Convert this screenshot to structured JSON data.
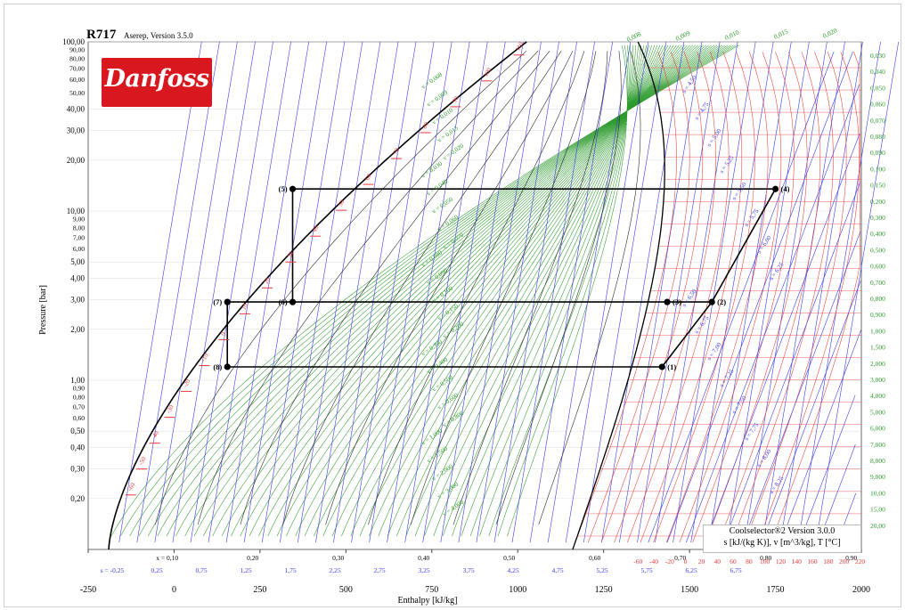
{
  "logo": {
    "brand": "Danfoss"
  },
  "chart_data": {
    "type": "pressure-enthalpy diagram",
    "title": "R717",
    "subtitle": "Aserep, Version 3.5.0",
    "xlabel": "Enthalpy [kJ/kg]",
    "ylabel": "Pressure [bar]",
    "xlim": [
      -250,
      2000
    ],
    "ylim": [
      0.1,
      100
    ],
    "yscale": "log",
    "x_ticks": [
      "-250",
      "0",
      "250",
      "500",
      "750",
      "1000",
      "1250",
      "1500",
      "1750",
      "2000"
    ],
    "y_ticks_major": [
      "100,00",
      "40,00",
      "30,00",
      "20,00",
      "10,00",
      "5,00",
      "4,00",
      "3,00",
      "2,00",
      "1,00",
      "0,50",
      "0,40",
      "0,30",
      "0,20"
    ],
    "y_ticks_dense": [
      "90,00",
      "80,00",
      "70,00",
      "60,00",
      "50,00",
      "9,00",
      "8,00",
      "7,00",
      "6,00",
      "0,90",
      "0,80",
      "0,70",
      "0,60"
    ],
    "quality_ticks": [
      "x = 0,10",
      "0,20",
      "0,30",
      "0,40",
      "0,50",
      "0,60",
      "0,70",
      "0,80",
      "0,90"
    ],
    "entropy_ticks": [
      "s = -0,25",
      "0,25",
      "0,75",
      "1,25",
      "1,75",
      "2,25",
      "2,75",
      "3,25",
      "3,75",
      "4,25",
      "4,75",
      "5,25",
      "5,75",
      "6,25",
      "6,75"
    ],
    "temperature_axis_ticks": [
      "-60",
      "-40",
      "-20",
      "0",
      "20",
      "40",
      "60",
      "80",
      "100",
      "120",
      "140",
      "160",
      "180",
      "200",
      "220"
    ],
    "sat_temperature_labels": [
      "-60",
      "-50",
      "-40",
      "-30",
      "-20",
      "-10",
      "0",
      "10",
      "20",
      "30",
      "40",
      "50",
      "60",
      "70",
      "80",
      "90",
      "100",
      "110"
    ],
    "specific_volume_labels": [
      "0,030",
      "0,040",
      "0,050",
      "0,060",
      "0,070",
      "0,080",
      "0,090",
      "0,100",
      "0,150",
      "0,200",
      "0,300",
      "0,400",
      "0,500",
      "0,600",
      "0,700",
      "0,800",
      "0,900",
      "1,000",
      "1,500",
      "2,000",
      "3,000",
      "4,000",
      "5,000",
      "6,000",
      "7,000",
      "8,000",
      "9,000",
      "10,00",
      "15,00",
      "20,00"
    ],
    "top_volume_labels": [
      "0,008",
      "0,009",
      "0,010",
      "0,015",
      "0,020"
    ],
    "entropy_labels_superheat": [
      "s = 4,50",
      "s = 4,75",
      "s = 5,00",
      "s = 5,25",
      "s = 5,50",
      "s = 5,75",
      "s = 6,00",
      "s = 6,25",
      "s = 6,50",
      "s = 6,75",
      "s = 7,00",
      "s = 7,25",
      "s = 7,50",
      "s = 7,75",
      "s = 8,00",
      "s = 8,25"
    ],
    "volume_labels_twophase": [
      "v = 0,008",
      "v = 0,009",
      "v = 0,010",
      "v = 0,015",
      "v = 0,020",
      "v = 0,030",
      "v = 0,040",
      "v = 0,050",
      "v = 0,060",
      "v = 0,070",
      "v = 0,080",
      "v = 0,090",
      "v = 0,100",
      "v = 0,150",
      "v = 0,200",
      "v = 0,300",
      "v = 0,400",
      "v = 0,500",
      "v = 0,600",
      "v = 0,800",
      "v = 1,000",
      "v = 1,500",
      "v = 2,000",
      "v = 3,000",
      "v = 4,000"
    ],
    "cycle_points": [
      {
        "label": "(1)",
        "h": 1420,
        "p": 1.2
      },
      {
        "label": "(2)",
        "h": 1565,
        "p": 2.9
      },
      {
        "label": "(3)",
        "h": 1435,
        "p": 2.9
      },
      {
        "label": "(4)",
        "h": 1750,
        "p": 13.5
      },
      {
        "label": "(5)",
        "h": 345,
        "p": 13.5
      },
      {
        "label": "(6)",
        "h": 345,
        "p": 2.9
      },
      {
        "label": "(7)",
        "h": 155,
        "p": 2.9
      },
      {
        "label": "(8)",
        "h": 155,
        "p": 1.2
      }
    ],
    "cycle_path": [
      "(1)",
      "(2)",
      "(3)",
      "(6)",
      "(7)",
      "(8)",
      "(1)"
    ],
    "cycle_path_hp": [
      "(2)",
      "(4)",
      "(5)",
      "(6)"
    ],
    "legend": {
      "line1": "Coolselector®2  Version 3.0.0",
      "line2": "s [kJ/(kg K)], v [m^3/kg], T [°C]"
    },
    "colors": {
      "saturation": "#000000",
      "isotherm": "#2b2b2b",
      "isentrope": "#3a3ae8",
      "isochore": "#2e9b2e",
      "superheat_temp": "#e83a3a",
      "cycle": "#000000"
    }
  }
}
